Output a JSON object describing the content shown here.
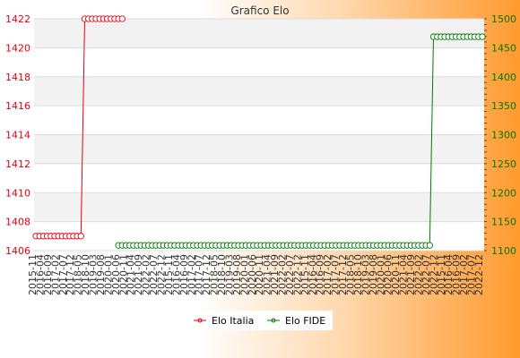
{
  "chart_data": {
    "type": "line",
    "title": "Grafico Elo",
    "colors": {
      "left_axis": "#e8000b",
      "right_axis": "#007a00",
      "series_1": "#e8000b",
      "series_2": "#007a00"
    },
    "left_axis": {
      "min": 1406,
      "max": 1422,
      "ticks": [
        "1406",
        "1408",
        "1410",
        "1412",
        "1414",
        "1416",
        "1418",
        "1420",
        "1422"
      ]
    },
    "right_axis": {
      "min": 1100,
      "max": 1500,
      "ticks": [
        "1100",
        "1150",
        "1200",
        "1250",
        "1300",
        "1350",
        "1400",
        "1450",
        "1500"
      ]
    },
    "x_labels": [
      "2015-11",
      "2016-04",
      "2016-09",
      "2017-02",
      "2017-07",
      "2017-12",
      "2018-05",
      "2018-10",
      "2019-03",
      "2019-08",
      "2020-01",
      "2020-06",
      "2020-11",
      "2021-04",
      "2021-09",
      "2022-02",
      "2022-07",
      "2022-12"
    ],
    "x_labels_last": "2022-12",
    "x_start_label": "2015-11",
    "x_count": 120,
    "series": [
      {
        "name": "Elo Italia",
        "axis": "left",
        "segments": [
          {
            "from": 0,
            "to": 12,
            "value": 1407
          },
          {
            "from": 13,
            "to": 23,
            "value": 1422
          }
        ]
      },
      {
        "name": "Elo FIDE",
        "axis": "right",
        "segments": [
          {
            "from": 22,
            "to": 105,
            "value": 1109
          },
          {
            "from": 106,
            "to": 119,
            "value": 1469
          }
        ]
      }
    ],
    "legend": {
      "position": "bottom-center",
      "entries": [
        "Elo Italia",
        "Elo FIDE"
      ]
    }
  }
}
